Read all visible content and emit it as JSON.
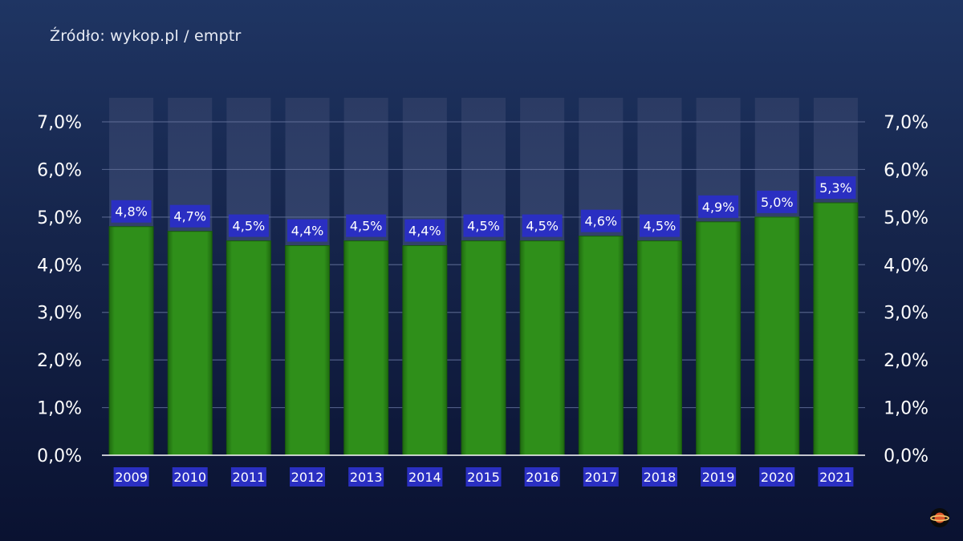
{
  "source_text": "Źródło: wykop.pl / emptr",
  "colors": {
    "bar": "#2e8b18",
    "bar_track": "#3b4c78",
    "label_box": "#2a2fc2",
    "grid": "#5f6e96",
    "axis": "#ffffff"
  },
  "chart_data": {
    "type": "bar",
    "title": "",
    "xlabel": "",
    "ylabel": "",
    "categories": [
      "2009",
      "2010",
      "2011",
      "2012",
      "2013",
      "2014",
      "2015",
      "2016",
      "2017",
      "2018",
      "2019",
      "2020",
      "2021"
    ],
    "values": [
      4.8,
      4.7,
      4.5,
      4.4,
      4.5,
      4.4,
      4.5,
      4.5,
      4.6,
      4.5,
      4.9,
      5.0,
      5.3
    ],
    "data_labels": [
      "4,8%",
      "4,7%",
      "4,5%",
      "4,4%",
      "4,5%",
      "4,4%",
      "4,5%",
      "4,5%",
      "4,6%",
      "4,5%",
      "4,9%",
      "5,0%",
      "5,3%"
    ],
    "ylim": [
      0,
      7
    ],
    "yticks": [
      0,
      1,
      2,
      3,
      4,
      5,
      6,
      7
    ],
    "ytick_labels": [
      "0,0%",
      "1,0%",
      "2,0%",
      "3,0%",
      "4,0%",
      "5,0%",
      "6,0%",
      "7,0%"
    ],
    "y_axis_both_sides": true,
    "grid": true,
    "legend": "none"
  }
}
